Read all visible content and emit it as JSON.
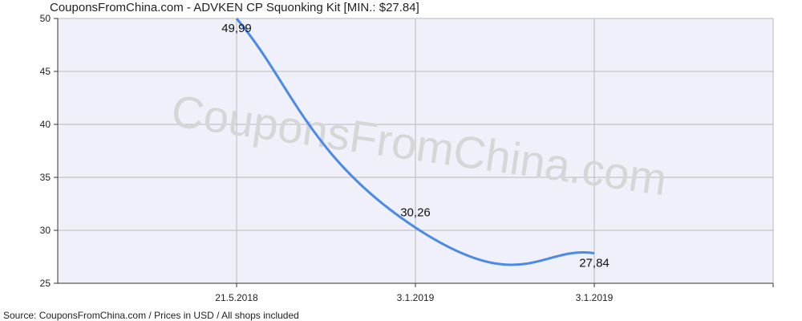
{
  "title": "CouponsFromChina.com - ADVKEN CP Squonking Kit [MIN.: $27.84]",
  "source": "Source:  CouponsFromChina.com / Prices in USD / All shops included",
  "watermark": "CouponsFromChina.com",
  "colors": {
    "plot_background": "#f0f0fa",
    "line": "#4a8ae8",
    "grid": "#b8b8b8",
    "axis": "#333333"
  },
  "chart_data": {
    "type": "line",
    "title": "CouponsFromChina.com - ADVKEN CP Squonking Kit [MIN.: $27.84]",
    "xlabel": "",
    "ylabel": "",
    "categories": [
      "21.5.2018",
      "3.1.2019",
      "3.1.2019"
    ],
    "values": [
      49.99,
      30.26,
      27.84
    ],
    "data_labels": [
      "49,99",
      "30,26",
      "27,84"
    ],
    "ylim": [
      25,
      50
    ],
    "yticks": [
      25,
      30,
      35,
      40,
      45,
      50
    ],
    "grid": true,
    "legend": "none"
  }
}
